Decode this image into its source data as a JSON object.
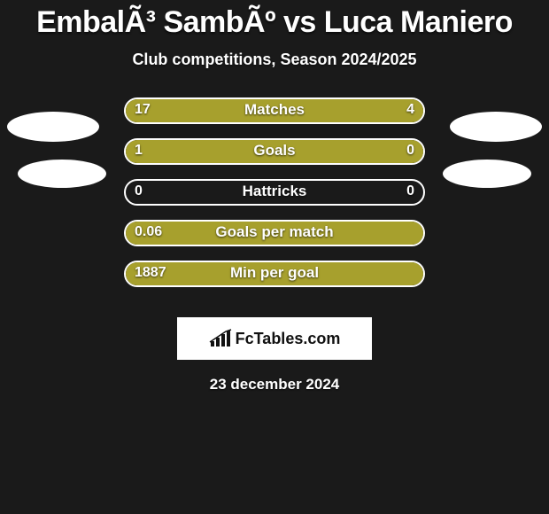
{
  "title": "EmbalÃ³ SambÃº vs Luca Maniero",
  "subtitle": "Club competitions, Season 2024/2025",
  "date": "23 december 2024",
  "logo_text": "FcTables.com",
  "colors": {
    "left": "#a7a02d",
    "right": "#a7a02d",
    "bg": "#1a1a1a",
    "border": "#ffffff",
    "avatar": "#ffffff",
    "text": "#ffffff"
  },
  "bar_style": {
    "track_width": 340,
    "track_height": 30,
    "border_radius": 16,
    "border_width": 2,
    "font_size_label": 17,
    "font_size_value": 16,
    "font_weight": 700
  },
  "stats": [
    {
      "label": "Matches",
      "left_val": "17",
      "right_val": "4",
      "left_pct": 77,
      "right_pct": 23
    },
    {
      "label": "Goals",
      "left_val": "1",
      "right_val": "0",
      "left_pct": 80,
      "right_pct": 20
    },
    {
      "label": "Hattricks",
      "left_val": "0",
      "right_val": "0",
      "left_pct": 0,
      "right_pct": 0
    },
    {
      "label": "Goals per match",
      "left_val": "0.06",
      "right_val": "",
      "left_pct": 100,
      "right_pct": 0
    },
    {
      "label": "Min per goal",
      "left_val": "1887",
      "right_val": "",
      "left_pct": 100,
      "right_pct": 0
    }
  ]
}
